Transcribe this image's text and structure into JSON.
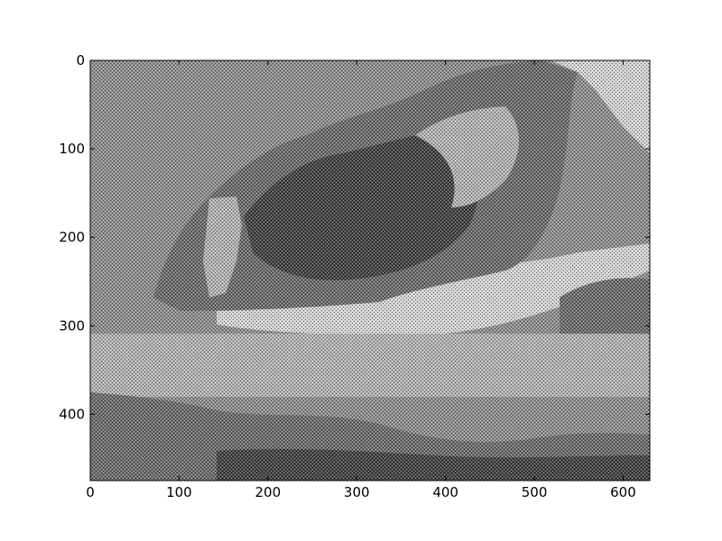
{
  "chart_data": {
    "type": "heatmap",
    "title": "",
    "xlabel": "",
    "ylabel": "",
    "xlim": [
      0,
      630
    ],
    "ylim": [
      0,
      475
    ],
    "y_inverted": true,
    "colormap": "gray (halftone dithered)",
    "xticks": [
      "0",
      "100",
      "200",
      "300",
      "400",
      "500",
      "600"
    ],
    "yticks": [
      "0",
      "100",
      "200",
      "300",
      "400"
    ],
    "xtick_values": [
      0,
      100,
      200,
      300,
      400,
      500,
      600
    ],
    "ytick_values": [
      0,
      100,
      200,
      300,
      400
    ],
    "grid": false,
    "content": "dithered grayscale photograph"
  },
  "colors": {
    "dark": "#454545",
    "mid_dark": "#6e6e6e",
    "mid": "#8f8f8f",
    "mid_light": "#b3b3b3",
    "light": "#d2d2d2",
    "axis": "#000000"
  }
}
